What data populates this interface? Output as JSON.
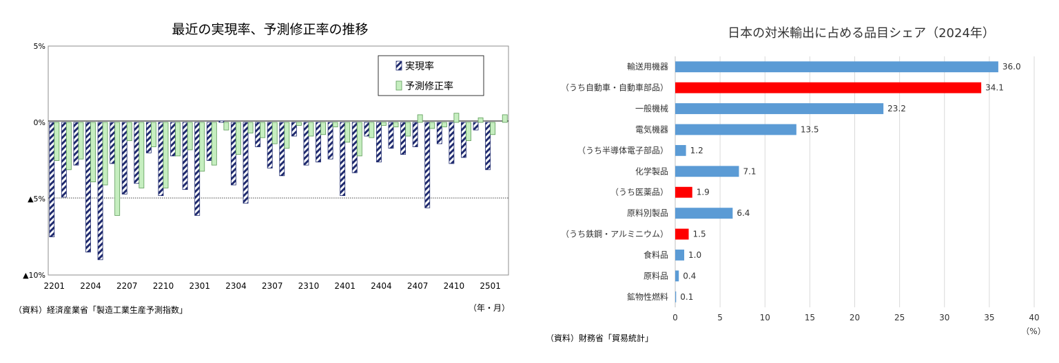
{
  "colors": {
    "actual_bar": "#1f2a6e",
    "forecast_bar": "#c6eec0",
    "forecast_border": "#5a9a55",
    "share_bar": "#5b9bd5",
    "highlight_bar": "#ff0000",
    "grid": "#d9d9d9"
  },
  "chart_data": [
    {
      "type": "bar",
      "title": "最近の実現率、予測修正率の推移",
      "xlabel": "（年・月）",
      "ylabel": "",
      "source": "（資料）経済産業省「製造工業生産予測指数」",
      "y_tick_labels": [
        "5%",
        "0%",
        "▲5%",
        "▲10%"
      ],
      "y_ticks": [
        5,
        0,
        -5,
        -10
      ],
      "ylim": [
        -10,
        5
      ],
      "reference_line": -5,
      "legend_position": "top-right",
      "x_tick_labels": [
        "2201",
        "2204",
        "2207",
        "2210",
        "2301",
        "2304",
        "2307",
        "2310",
        "2401",
        "2404",
        "2407",
        "2410",
        "2501"
      ],
      "categories": [
        "2201",
        "2202",
        "2203",
        "2204",
        "2205",
        "2206",
        "2207",
        "2208",
        "2209",
        "2210",
        "2211",
        "2212",
        "2301",
        "2302",
        "2303",
        "2304",
        "2305",
        "2306",
        "2307",
        "2308",
        "2309",
        "2310",
        "2311",
        "2312",
        "2401",
        "2402",
        "2403",
        "2404",
        "2405",
        "2406",
        "2407",
        "2408",
        "2409",
        "2410",
        "2411",
        "2412",
        "2501",
        "2502"
      ],
      "series": [
        {
          "name": "実現率",
          "pattern": "hatched",
          "values": [
            -7.5,
            -4.9,
            -2.8,
            -8.5,
            -9.0,
            -2.7,
            -4.7,
            -4.0,
            -2.0,
            -4.8,
            -2.2,
            -4.4,
            -6.1,
            -2.5,
            0.1,
            -4.1,
            -5.3,
            -1.6,
            -3.0,
            -3.5,
            -0.9,
            -2.8,
            -2.6,
            -2.4,
            -4.8,
            -3.3,
            -0.9,
            -2.6,
            -1.7,
            -2.1,
            -1.6,
            -5.6,
            -1.4,
            -2.7,
            -2.3,
            -0.5,
            -3.1,
            0.0
          ]
        },
        {
          "name": "予測修正率",
          "pattern": "solid",
          "values": [
            -2.5,
            -3.1,
            -2.4,
            -3.9,
            -4.1,
            -6.1,
            -1.2,
            -4.3,
            -1.6,
            -4.3,
            -2.2,
            -1.8,
            -3.2,
            -2.8,
            -0.5,
            -2.1,
            -0.7,
            -1.0,
            -1.4,
            -1.7,
            -0.2,
            -0.9,
            -0.8,
            -0.3,
            -1.3,
            -2.2,
            -1.0,
            -0.2,
            -0.3,
            -0.9,
            0.5,
            -0.4,
            -0.3,
            0.6,
            -1.2,
            0.3,
            -0.8,
            0.5
          ]
        }
      ]
    },
    {
      "type": "bar",
      "orientation": "horizontal",
      "title": "日本の対米輸出に占める品目シェア（2024年）",
      "xlabel": "（%）",
      "source": "（資料）財務省「貿易統計」",
      "xlim": [
        0,
        40
      ],
      "x_ticks": [
        0,
        5,
        10,
        15,
        20,
        25,
        30,
        35,
        40
      ],
      "categories": [
        "輸送用機器",
        "（うち自動車・自動車部品）",
        "一般機械",
        "電気機器",
        "（うち半導体電子部品）",
        "化学製品",
        "（うち医薬品）",
        "原料別製品",
        "（うち鉄鋼・アルミニウム）",
        "食料品",
        "原料品",
        "鉱物性燃料"
      ],
      "values": [
        36.0,
        34.1,
        23.2,
        13.5,
        1.2,
        7.1,
        1.9,
        6.4,
        1.5,
        1.0,
        0.4,
        0.1
      ],
      "value_labels": [
        "36.0",
        "34.1",
        "23.2",
        "13.5",
        "1.2",
        "7.1",
        "1.9",
        "6.4",
        "1.5",
        "1.0",
        "0.4",
        "0.1"
      ],
      "highlighted": [
        false,
        true,
        false,
        false,
        false,
        false,
        true,
        false,
        true,
        false,
        false,
        false
      ],
      "grid": true
    }
  ]
}
